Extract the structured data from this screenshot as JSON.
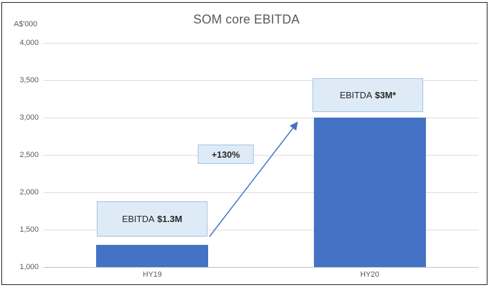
{
  "chart": {
    "title": "SOM core EBITDA",
    "y_unit": "A$'000"
  },
  "chart_data": {
    "type": "bar",
    "title": "SOM core EBITDA",
    "categories": [
      "HY19",
      "HY20"
    ],
    "values": [
      1300,
      3000
    ],
    "xlabel": "",
    "ylabel": "A$'000",
    "ylim": [
      1000,
      4000
    ],
    "ytick_step": 500,
    "ytick_labels": [
      "1,000",
      "1,500",
      "2,000",
      "2,500",
      "3,000",
      "3,500",
      "4,000"
    ],
    "grid": true,
    "legend": false,
    "bar_color": "#4472C4",
    "annotations": [
      {
        "text": "EBITDA $1.3M",
        "target": "HY19",
        "value": 1300
      },
      {
        "text": "EBITDA $3M*",
        "target": "HY20",
        "value": 3000
      },
      {
        "text": "+130%",
        "type": "growth-arrow",
        "from": "HY19",
        "to": "HY20"
      }
    ]
  },
  "annotations": {
    "hy19": {
      "prefix": "EBITDA",
      "value": "$1.3M"
    },
    "hy20": {
      "prefix": "EBITDA",
      "value": "$3M*"
    },
    "growth": {
      "label": "+130%"
    }
  },
  "colors": {
    "bar": "#4472C4",
    "callout_fill": "#DEEBF7",
    "callout_border": "#9DC3E6",
    "arrow": "#4472C4",
    "gridline": "#DCDCDC",
    "axis_line": "#BFBFBF",
    "text_gray": "#595959",
    "text_dark": "#262626",
    "frame_border": "#1F1F1F"
  }
}
